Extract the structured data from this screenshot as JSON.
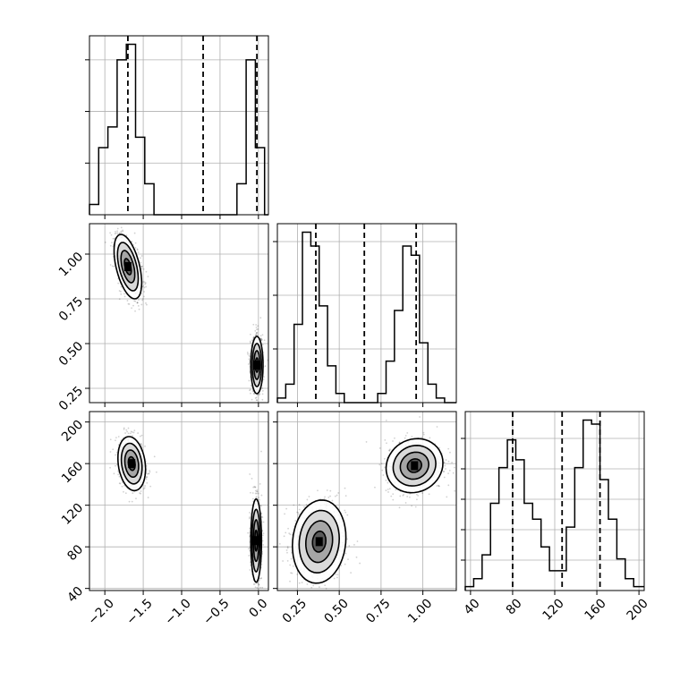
{
  "chart_data": [
    {
      "type": "histogram",
      "panel": "hist-p0",
      "xlim": [
        -2.2,
        0.13
      ],
      "grid": true,
      "bins": [
        -2.2,
        -2.08,
        -1.96,
        -1.84,
        -1.72,
        -1.6,
        -1.48,
        -1.36,
        -1.24,
        -1.12,
        -1.0,
        -0.88,
        -0.76,
        -0.64,
        -0.52,
        -0.4,
        -0.28,
        -0.16,
        -0.04,
        0.08,
        0.13
      ],
      "counts": [
        2,
        13,
        17,
        30,
        33,
        15,
        6,
        0,
        0,
        0,
        0,
        0,
        0,
        0,
        0,
        0,
        6,
        30,
        13,
        0
      ],
      "quantiles": [
        -1.7,
        -0.72,
        -0.02
      ]
    },
    {
      "type": "histogram",
      "panel": "hist-p1",
      "xlim": [
        0.13,
        1.2
      ],
      "grid": true,
      "bins": [
        0.13,
        0.18,
        0.23,
        0.28,
        0.33,
        0.38,
        0.43,
        0.48,
        0.53,
        0.58,
        0.63,
        0.68,
        0.73,
        0.78,
        0.83,
        0.88,
        0.93,
        0.98,
        1.03,
        1.08,
        1.13,
        1.2
      ],
      "counts": [
        1,
        4,
        17,
        37,
        34,
        21,
        8,
        2,
        0,
        0,
        0,
        0,
        2,
        9,
        20,
        34,
        32,
        13,
        4,
        1,
        0
      ],
      "quantiles": [
        0.36,
        0.65,
        0.96
      ]
    },
    {
      "type": "histogram",
      "panel": "hist-p2",
      "xlim": [
        35,
        205
      ],
      "grid": true,
      "bins": [
        35,
        43,
        51,
        59,
        67,
        75,
        83,
        91,
        99,
        107,
        115,
        123,
        131,
        139,
        147,
        155,
        163,
        171,
        179,
        187,
        195,
        205
      ],
      "counts": [
        1,
        3,
        9,
        22,
        31,
        38,
        33,
        22,
        18,
        11,
        5,
        5,
        16,
        31,
        43,
        42,
        28,
        18,
        8,
        3,
        1
      ],
      "quantiles": [
        80,
        127,
        163
      ]
    },
    {
      "type": "scatter",
      "panel": "scatter-p0-p1",
      "xlim": [
        -2.2,
        0.13
      ],
      "ylim": [
        0.17,
        1.17
      ],
      "grid": true,
      "clusters": [
        {
          "center": [
            -1.7,
            0.93
          ],
          "spread": [
            0.09,
            0.09
          ],
          "corr": -0.5
        },
        {
          "center": [
            -0.02,
            0.38
          ],
          "spread": [
            0.04,
            0.08
          ],
          "corr": 0.0
        }
      ],
      "contour_levels": [
        0.5,
        1.0,
        1.5,
        2.0
      ]
    },
    {
      "type": "scatter",
      "panel": "scatter-p0-p2",
      "xlim": [
        -2.2,
        0.13
      ],
      "ylim": [
        38,
        210
      ],
      "grid": true,
      "clusters": [
        {
          "center": [
            -1.65,
            160
          ],
          "spread": [
            0.09,
            13
          ],
          "corr": -0.2
        },
        {
          "center": [
            -0.03,
            86
          ],
          "spread": [
            0.035,
            20
          ],
          "corr": 0.0
        }
      ],
      "contour_levels": [
        0.5,
        1.0,
        1.5,
        2.0
      ]
    },
    {
      "type": "scatter",
      "panel": "scatter-p1-p2",
      "xlim": [
        0.13,
        1.2
      ],
      "ylim": [
        38,
        210
      ],
      "grid": true,
      "clusters": [
        {
          "center": [
            0.38,
            85
          ],
          "spread": [
            0.08,
            20
          ],
          "corr": 0.1
        },
        {
          "center": [
            0.95,
            158
          ],
          "spread": [
            0.085,
            13
          ],
          "corr": 0.1
        }
      ],
      "contour_levels": [
        0.5,
        1.0,
        1.5,
        2.0
      ]
    }
  ],
  "axes": {
    "p0_ticks": [
      "−2.0",
      "−1.5",
      "−1.0",
      "−0.5",
      "0.0"
    ],
    "p0_values": [
      -2.0,
      -1.5,
      -1.0,
      -0.5,
      0.0
    ],
    "p1_ticks": [
      "0.25",
      "0.50",
      "0.75",
      "1.00"
    ],
    "p1_values": [
      0.25,
      0.5,
      0.75,
      1.0
    ],
    "p2_ticks": [
      "40",
      "80",
      "120",
      "160",
      "200"
    ],
    "p2_values": [
      40,
      80,
      120,
      160,
      200
    ],
    "hist_p0_yticks": [
      10,
      20,
      30
    ],
    "hist_p0_ymax": 33
  },
  "colors": {
    "line": "#000000",
    "grid": "#b0b0b0",
    "points": "#000000"
  }
}
